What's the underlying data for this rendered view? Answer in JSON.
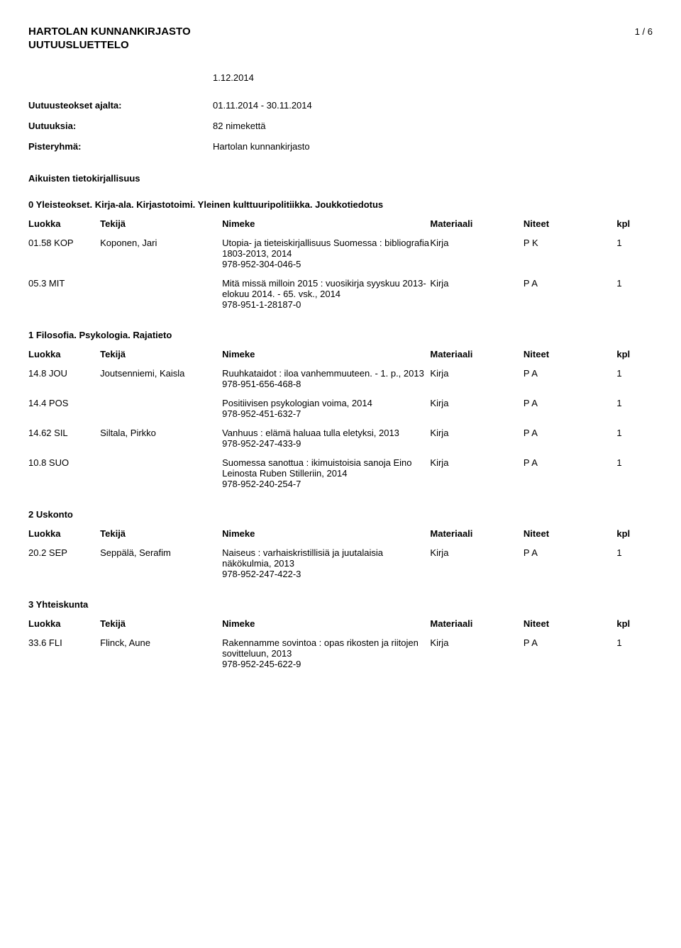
{
  "header": {
    "title": "HARTOLAN KUNNANKIRJASTO",
    "subtitle": "UUTUUSLUETTELO",
    "page_indicator": "1 / 6"
  },
  "date": "1.12.2014",
  "meta": [
    {
      "label": "Uutuusteokset ajalta:",
      "value": "01.11.2014 - 30.11.2014"
    },
    {
      "label": "Uutuuksia:",
      "value": "82 nimekettä"
    },
    {
      "label": "Pisteryhmä:",
      "value": "Hartolan kunnankirjasto"
    }
  ],
  "super_section": "Aikuisten tietokirjallisuus",
  "columns": {
    "luokka": "Luokka",
    "tekija": "Tekijä",
    "nimeke": "Nimeke",
    "materiaali": "Materiaali",
    "niteet": "Niteet",
    "kpl": "kpl"
  },
  "sections": [
    {
      "heading": "0 Yleisteokset. Kirja-ala. Kirjastotoimi. Yleinen kulttuuripolitiikka. Joukkotiedotus",
      "rows": [
        {
          "luokka": "01.58 KOP",
          "tekija": "Koponen, Jari",
          "nimeke": "Utopia- ja tieteiskirjallisuus Suomessa : bibliografia 1803-2013, 2014\n978-952-304-046-5",
          "materiaali": "Kirja",
          "niteet": "P K",
          "kpl": "1"
        },
        {
          "luokka": "05.3 MIT",
          "tekija": "",
          "nimeke": "Mitä missä milloin 2015 : vuosikirja syyskuu 2013-elokuu 2014. - 65. vsk., 2014\n978-951-1-28187-0",
          "materiaali": "Kirja",
          "niteet": "P A",
          "kpl": "1"
        }
      ]
    },
    {
      "heading": "1 Filosofia. Psykologia. Rajatieto",
      "rows": [
        {
          "luokka": "14.8 JOU",
          "tekija": "Joutsenniemi, Kaisla",
          "nimeke": "Ruuhkataidot : iloa vanhemmuuteen. - 1. p., 2013\n978-951-656-468-8",
          "materiaali": "Kirja",
          "niteet": "P A",
          "kpl": "1"
        },
        {
          "luokka": "14.4 POS",
          "tekija": "",
          "nimeke": "Positiivisen psykologian voima, 2014\n978-952-451-632-7",
          "materiaali": "Kirja",
          "niteet": "P A",
          "kpl": "1"
        },
        {
          "luokka": "14.62 SIL",
          "tekija": "Siltala, Pirkko",
          "nimeke": "Vanhuus : elämä haluaa tulla eletyksi, 2013\n978-952-247-433-9",
          "materiaali": "Kirja",
          "niteet": "P A",
          "kpl": "1"
        },
        {
          "luokka": "10.8 SUO",
          "tekija": "",
          "nimeke": "Suomessa sanottua : ikimuistoisia sanoja Eino Leinosta Ruben Stilleriin, 2014\n978-952-240-254-7",
          "materiaali": "Kirja",
          "niteet": "P A",
          "kpl": "1"
        }
      ]
    },
    {
      "heading": "2 Uskonto",
      "rows": [
        {
          "luokka": "20.2 SEP",
          "tekija": "Seppälä, Serafim",
          "nimeke": "Naiseus : varhaiskristillisiä ja juutalaisia näkökulmia, 2013\n978-952-247-422-3",
          "materiaali": "Kirja",
          "niteet": "P A",
          "kpl": "1"
        }
      ]
    },
    {
      "heading": "3 Yhteiskunta",
      "rows": [
        {
          "luokka": "33.6 FLI",
          "tekija": "Flinck, Aune",
          "nimeke": "Rakennamme sovintoa : opas rikosten ja riitojen sovitteluun, 2013\n978-952-245-622-9",
          "materiaali": "Kirja",
          "niteet": "P A",
          "kpl": "1"
        }
      ]
    }
  ]
}
